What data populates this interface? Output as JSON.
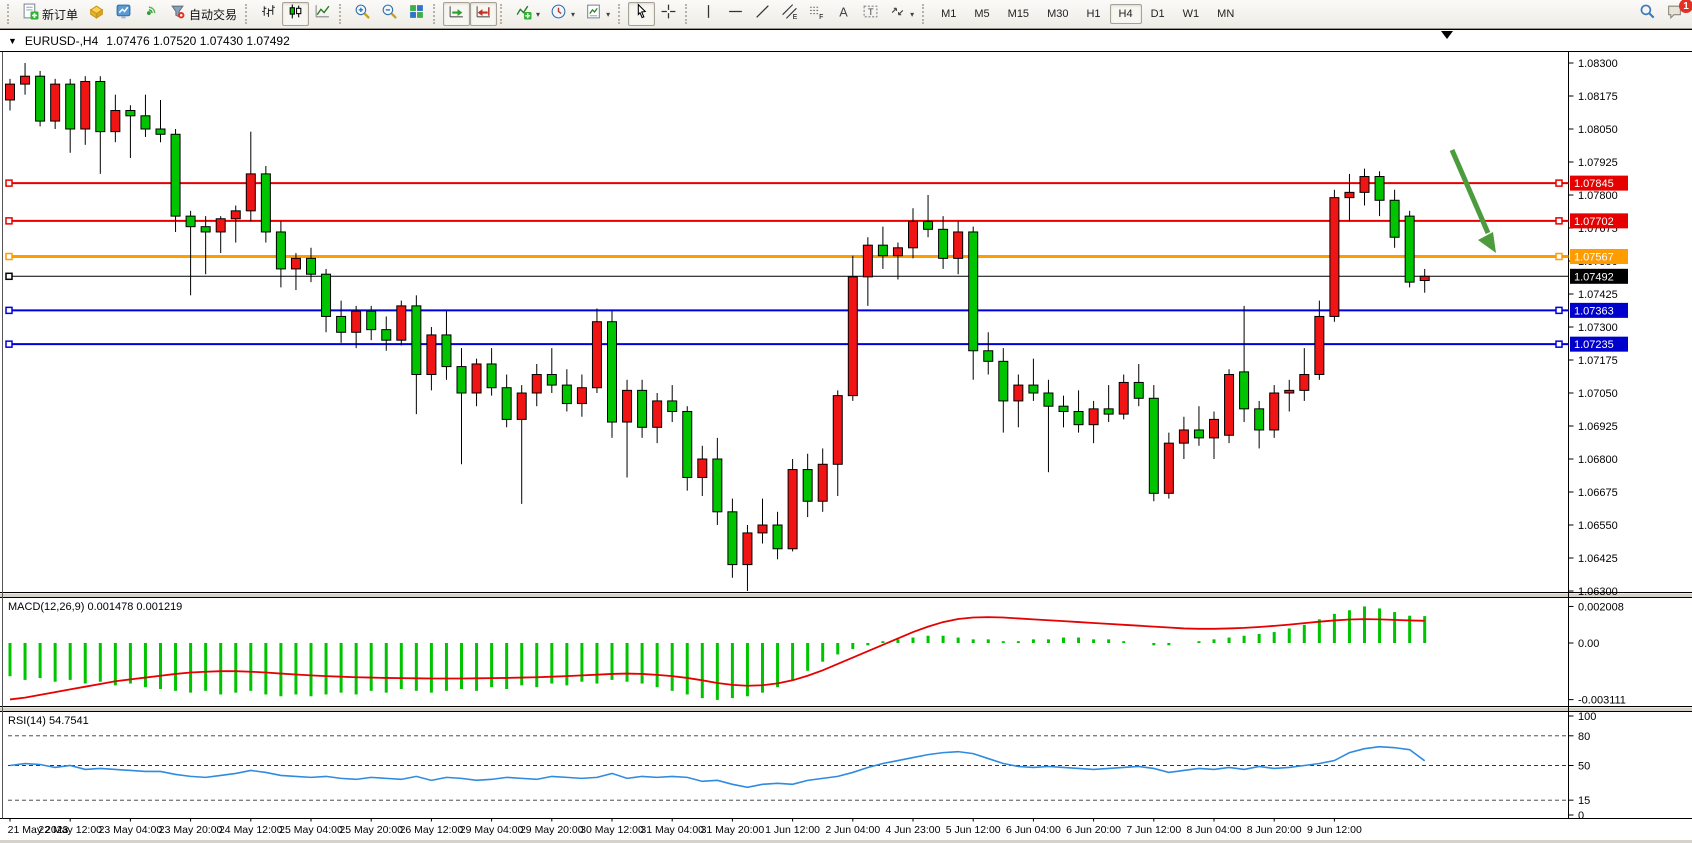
{
  "toolbar": {
    "new_order_label": "新订单",
    "auto_trading_label": "自动交易",
    "notification_count": "1",
    "icon_glyphs": {
      "channel": "E",
      "fibonacci": "F",
      "text": "A",
      "label": "T"
    },
    "timeframes": [
      {
        "label": "M1",
        "active": false
      },
      {
        "label": "M5",
        "active": false
      },
      {
        "label": "M15",
        "active": false
      },
      {
        "label": "M30",
        "active": false
      },
      {
        "label": "H1",
        "active": false
      },
      {
        "label": "H4",
        "active": true
      },
      {
        "label": "D1",
        "active": false
      },
      {
        "label": "W1",
        "active": false
      },
      {
        "label": "MN",
        "active": false
      }
    ]
  },
  "chart": {
    "symbol_title": "EURUSD-,H4",
    "ohlc_line": "1.07476 1.07520 1.07430 1.07492",
    "colors": {
      "bull": "#f01414",
      "bear": "#00c400",
      "wick": "#000000",
      "background": "#ffffff"
    },
    "hlines": [
      {
        "price": 1.07845,
        "color": "#e60000",
        "width": 2
      },
      {
        "price": 1.07702,
        "color": "#e60000",
        "width": 2
      },
      {
        "price": 1.07567,
        "color": "#ff9c00",
        "width": 3
      },
      {
        "price": 1.07492,
        "color": "#000000",
        "width": 1
      },
      {
        "price": 1.07363,
        "color": "#0000dc",
        "width": 2
      },
      {
        "price": 1.07235,
        "color": "#0000dc",
        "width": 2
      }
    ],
    "price_axis": {
      "ticks": [
        "1.08300",
        "1.08175",
        "1.08050",
        "1.07925",
        "1.07800",
        "1.07675",
        "1.07550",
        "1.07425",
        "1.07300",
        "1.07175",
        "1.07050",
        "1.06925",
        "1.06800",
        "1.06675",
        "1.06550",
        "1.06425",
        "1.06300"
      ],
      "badges": [
        {
          "value": "1.07845",
          "color": "#e60000"
        },
        {
          "value": "1.07702",
          "color": "#e60000"
        },
        {
          "value": "1.07567",
          "color": "#ff9c00"
        },
        {
          "value": "1.07492",
          "color": "#000000"
        },
        {
          "value": "1.07363",
          "color": "#0000cc"
        },
        {
          "value": "1.07235",
          "color": "#0000cc"
        }
      ]
    },
    "arrow": {
      "color": "#4c9b3c"
    }
  },
  "chart_data": {
    "type": "candlestick",
    "symbol": "EURUSD",
    "period": "H4",
    "price_range": [
      1.063,
      1.0834
    ],
    "candles": [
      [
        1.0816,
        1.0824,
        1.0812,
        1.0822
      ],
      [
        1.0822,
        1.083,
        1.0818,
        1.0825
      ],
      [
        1.0825,
        1.0827,
        1.0806,
        1.0808
      ],
      [
        1.0808,
        1.0824,
        1.0805,
        1.0822
      ],
      [
        1.0822,
        1.0824,
        1.0796,
        1.0805
      ],
      [
        1.0805,
        1.0825,
        1.0799,
        1.0823
      ],
      [
        1.0823,
        1.0825,
        1.0788,
        1.0804
      ],
      [
        1.0804,
        1.0818,
        1.08,
        1.0812
      ],
      [
        1.0812,
        1.0814,
        1.0794,
        1.081
      ],
      [
        1.081,
        1.0818,
        1.0802,
        1.0805
      ],
      [
        1.0805,
        1.0816,
        1.08,
        1.0803
      ],
      [
        1.0803,
        1.0805,
        1.0766,
        1.0772
      ],
      [
        1.0772,
        1.0774,
        1.0742,
        1.0768
      ],
      [
        1.0768,
        1.0772,
        1.075,
        1.0766
      ],
      [
        1.0766,
        1.0772,
        1.0758,
        1.0771
      ],
      [
        1.0771,
        1.0776,
        1.0762,
        1.0774
      ],
      [
        1.0774,
        1.0804,
        1.077,
        1.0788
      ],
      [
        1.0788,
        1.0791,
        1.0762,
        1.0766
      ],
      [
        1.0766,
        1.077,
        1.0745,
        1.0752
      ],
      [
        1.0752,
        1.0758,
        1.0744,
        1.0756
      ],
      [
        1.0756,
        1.076,
        1.0747,
        1.075
      ],
      [
        1.075,
        1.0752,
        1.0728,
        1.0734
      ],
      [
        1.0734,
        1.074,
        1.0724,
        1.0728
      ],
      [
        1.0728,
        1.0738,
        1.0722,
        1.0736
      ],
      [
        1.0736,
        1.0738,
        1.0725,
        1.0729
      ],
      [
        1.0729,
        1.0734,
        1.0721,
        1.0725
      ],
      [
        1.0725,
        1.074,
        1.0723,
        1.0738
      ],
      [
        1.0738,
        1.0742,
        1.0697,
        1.0712
      ],
      [
        1.0712,
        1.073,
        1.0706,
        1.0727
      ],
      [
        1.0727,
        1.0736,
        1.071,
        1.0715
      ],
      [
        1.0715,
        1.0722,
        1.0678,
        1.0705
      ],
      [
        1.0705,
        1.0718,
        1.07,
        1.0716
      ],
      [
        1.0716,
        1.0722,
        1.0704,
        1.0707
      ],
      [
        1.0707,
        1.0712,
        1.0692,
        1.0695
      ],
      [
        1.0695,
        1.0708,
        1.0663,
        1.0705
      ],
      [
        1.0705,
        1.0716,
        1.07,
        1.0712
      ],
      [
        1.0712,
        1.0722,
        1.0705,
        1.0708
      ],
      [
        1.0708,
        1.0714,
        1.0698,
        1.0701
      ],
      [
        1.0701,
        1.0712,
        1.0696,
        1.0707
      ],
      [
        1.0707,
        1.0737,
        1.0705,
        1.0732
      ],
      [
        1.0732,
        1.0736,
        1.0688,
        1.0694
      ],
      [
        1.0694,
        1.071,
        1.0673,
        1.0706
      ],
      [
        1.0706,
        1.071,
        1.0688,
        1.0692
      ],
      [
        1.0692,
        1.0705,
        1.0686,
        1.0702
      ],
      [
        1.0702,
        1.0708,
        1.0694,
        1.0698
      ],
      [
        1.0698,
        1.07,
        1.0668,
        1.0673
      ],
      [
        1.0673,
        1.0685,
        1.0666,
        1.068
      ],
      [
        1.068,
        1.0688,
        1.0655,
        1.066
      ],
      [
        1.066,
        1.0665,
        1.0635,
        1.064
      ],
      [
        1.064,
        1.0655,
        1.063,
        1.0652
      ],
      [
        1.0652,
        1.0665,
        1.0648,
        1.0655
      ],
      [
        1.0655,
        1.066,
        1.0642,
        1.0646
      ],
      [
        1.0646,
        1.068,
        1.0645,
        1.0676
      ],
      [
        1.0676,
        1.0682,
        1.0658,
        1.0664
      ],
      [
        1.0664,
        1.0684,
        1.066,
        1.0678
      ],
      [
        1.0678,
        1.0706,
        1.0666,
        1.0704
      ],
      [
        1.0704,
        1.0757,
        1.0702,
        1.0749
      ],
      [
        1.0749,
        1.0764,
        1.0738,
        1.0761
      ],
      [
        1.0761,
        1.0768,
        1.0752,
        1.0757
      ],
      [
        1.0757,
        1.0762,
        1.0748,
        1.076
      ],
      [
        1.076,
        1.0775,
        1.0756,
        1.077
      ],
      [
        1.077,
        1.078,
        1.0764,
        1.0767
      ],
      [
        1.0767,
        1.0772,
        1.0752,
        1.0756
      ],
      [
        1.0756,
        1.077,
        1.075,
        1.0766
      ],
      [
        1.0766,
        1.0768,
        1.071,
        1.0721
      ],
      [
        1.0721,
        1.0728,
        1.0712,
        1.0717
      ],
      [
        1.0717,
        1.0722,
        1.069,
        1.0702
      ],
      [
        1.0702,
        1.0712,
        1.0692,
        1.0708
      ],
      [
        1.0708,
        1.0718,
        1.0702,
        1.0705
      ],
      [
        1.0705,
        1.071,
        1.0675,
        1.07
      ],
      [
        1.07,
        1.0704,
        1.0692,
        1.0698
      ],
      [
        1.0698,
        1.0706,
        1.069,
        1.0693
      ],
      [
        1.0693,
        1.0702,
        1.0686,
        1.0699
      ],
      [
        1.0699,
        1.0708,
        1.0694,
        1.0697
      ],
      [
        1.0697,
        1.0712,
        1.0695,
        1.0709
      ],
      [
        1.0709,
        1.0716,
        1.07,
        1.0703
      ],
      [
        1.0703,
        1.0708,
        1.0664,
        1.0667
      ],
      [
        1.0667,
        1.069,
        1.0665,
        1.0686
      ],
      [
        1.0686,
        1.0696,
        1.068,
        1.0691
      ],
      [
        1.0691,
        1.07,
        1.0685,
        1.0688
      ],
      [
        1.0688,
        1.0698,
        1.068,
        1.0695
      ],
      [
        1.0689,
        1.0714,
        1.0686,
        1.0712
      ],
      [
        1.0713,
        1.0738,
        1.0694,
        1.0699
      ],
      [
        1.0699,
        1.0702,
        1.0684,
        1.0691
      ],
      [
        1.0691,
        1.0708,
        1.0688,
        1.0705
      ],
      [
        1.0705,
        1.071,
        1.0698,
        1.0706
      ],
      [
        1.0706,
        1.0722,
        1.0702,
        1.0712
      ],
      [
        1.0712,
        1.074,
        1.071,
        1.0734
      ],
      [
        1.0734,
        1.0782,
        1.0732,
        1.0779
      ],
      [
        1.0779,
        1.0788,
        1.077,
        1.0781
      ],
      [
        1.0781,
        1.079,
        1.0776,
        1.0787
      ],
      [
        1.0787,
        1.0789,
        1.0772,
        1.0778
      ],
      [
        1.0778,
        1.0782,
        1.076,
        1.0764
      ],
      [
        1.0772,
        1.0774,
        1.0745,
        1.0747
      ],
      [
        1.07476,
        1.0752,
        1.0743,
        1.07492
      ]
    ],
    "time_labels": [
      "21 May 2023",
      "22 May 12:00",
      "23 May 04:00",
      "23 May 20:00",
      "24 May 12:00",
      "25 May 04:00",
      "25 May 20:00",
      "26 May 12:00",
      "29 May 04:00",
      "29 May 20:00",
      "30 May 12:00",
      "31 May 04:00",
      "31 May 20:00",
      "1 Jun 12:00",
      "2 Jun 04:00",
      "4 Jun 23:00",
      "5 Jun 12:00",
      "6 Jun 04:00",
      "6 Jun 20:00",
      "7 Jun 12:00",
      "8 Jun 04:00",
      "8 Jun 20:00",
      "9 Jun 12:00"
    ],
    "label_every": 4,
    "macd": {
      "label": "MACD(12,26,9)",
      "values_text": "0.001478 0.001219",
      "axis_labels": [
        "0.002008",
        "0.00",
        "-0.003111"
      ],
      "colors": {
        "histogram": "#00c400",
        "signal": "#e60000"
      },
      "histogram_x1e4": [
        -18,
        -20,
        -19,
        -21,
        -20,
        -22,
        -21,
        -23,
        -22,
        -24,
        -25,
        -26,
        -27,
        -26,
        -28,
        -27,
        -26,
        -28,
        -29,
        -28,
        -29,
        -28,
        -27,
        -28,
        -26,
        -27,
        -25,
        -26,
        -27,
        -26,
        -25,
        -26,
        -24,
        -25,
        -23,
        -24,
        -22,
        -23,
        -21,
        -22,
        -20,
        -21,
        -22,
        -24,
        -26,
        -28,
        -30,
        -31,
        -30,
        -29,
        -27,
        -24,
        -20,
        -15,
        -10,
        -6,
        -3,
        -1,
        1,
        2,
        3,
        4,
        4,
        3,
        2,
        2,
        1,
        1,
        2,
        2,
        3,
        3,
        2,
        2,
        1,
        0,
        -1,
        -1,
        0,
        1,
        2,
        3,
        4,
        5,
        6,
        8,
        10,
        13,
        16,
        18,
        20.08,
        19,
        17,
        15,
        14.78
      ],
      "signal_x1e4": [
        -31,
        -30,
        -28.5,
        -27,
        -25.5,
        -24,
        -22.5,
        -21,
        -20,
        -19,
        -18,
        -17,
        -16.2,
        -15.8,
        -15.5,
        -15.5,
        -15.8,
        -16.2,
        -16.8,
        -17.3,
        -17.8,
        -18.2,
        -18.5,
        -18.8,
        -19,
        -19.2,
        -19.3,
        -19.4,
        -19.5,
        -19.5,
        -19.5,
        -19.4,
        -19.3,
        -19.2,
        -19,
        -18.8,
        -18.5,
        -18.2,
        -17.8,
        -17.4,
        -17,
        -16.8,
        -17,
        -17.5,
        -18.2,
        -19.2,
        -20.5,
        -22,
        -23,
        -23.5,
        -23.2,
        -22.2,
        -20.5,
        -18,
        -15,
        -11.5,
        -8,
        -4.5,
        -1,
        2.5,
        6,
        9,
        11.5,
        13.2,
        14,
        14.2,
        14,
        13.5,
        13,
        12.5,
        12,
        11.5,
        11,
        10.5,
        10,
        9.5,
        9,
        8.5,
        8,
        7.8,
        7.8,
        8,
        8.3,
        8.8,
        9.4,
        10.1,
        10.9,
        11.7,
        12.4,
        12.9,
        13.1,
        13,
        12.7,
        12.4,
        12.19
      ]
    },
    "rsi": {
      "label": "RSI(14)",
      "value_text": "54.7541",
      "axis_labels": [
        "100",
        "80",
        "50",
        "15",
        "0"
      ],
      "levels": [
        80,
        50,
        15
      ],
      "color": "#2f8be0",
      "series": [
        50,
        52,
        51,
        48,
        50,
        46,
        47,
        46,
        45,
        44,
        44,
        41,
        39,
        38,
        40,
        42,
        45,
        43,
        40,
        39,
        38,
        39,
        37,
        36,
        38,
        37,
        36,
        39,
        35,
        38,
        37,
        35,
        36,
        38,
        37,
        36,
        39,
        38,
        37,
        38,
        42,
        37,
        39,
        38,
        39,
        38,
        34,
        35,
        31,
        28,
        31,
        32,
        31,
        35,
        37,
        39,
        43,
        48,
        52,
        55,
        58,
        61,
        63,
        64,
        62,
        57,
        52,
        49,
        48,
        49,
        48,
        47,
        46,
        47,
        48,
        49,
        47,
        43,
        45,
        47,
        46,
        48,
        46,
        49,
        47,
        48,
        50,
        52,
        55,
        63,
        67,
        69,
        68,
        66,
        54.75
      ]
    }
  }
}
